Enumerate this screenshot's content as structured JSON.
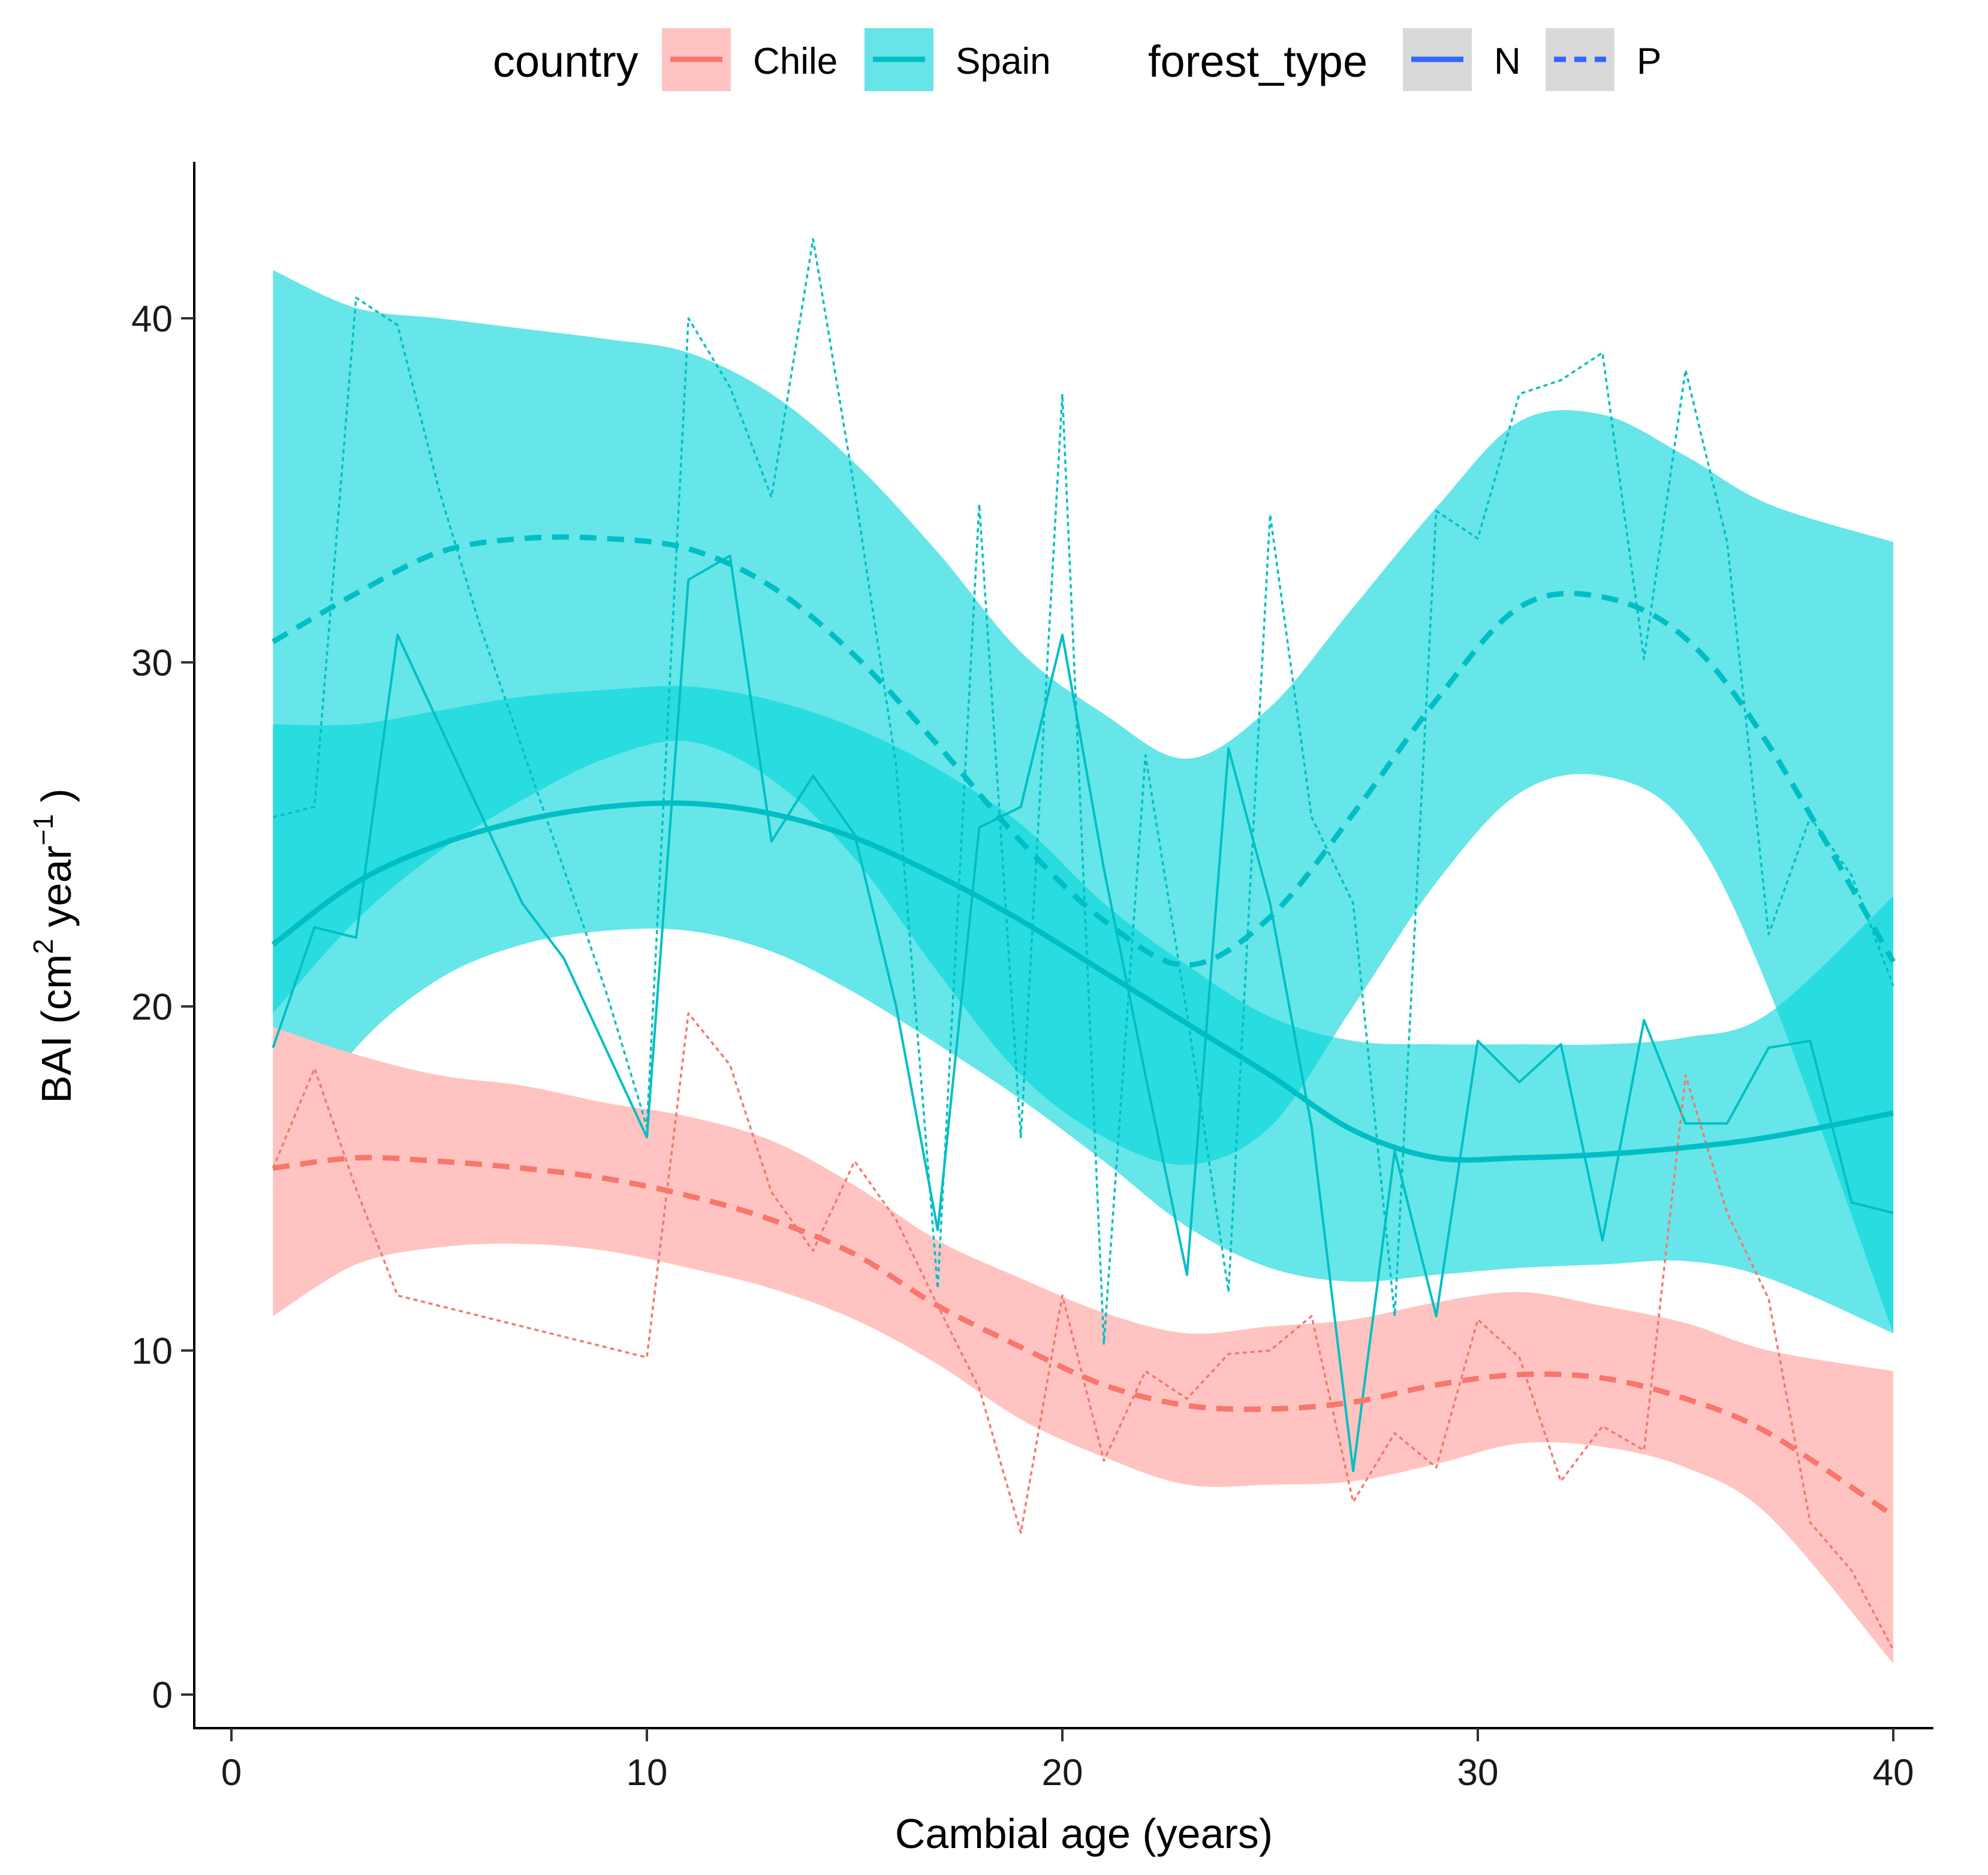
{
  "chart_data": {
    "type": "line",
    "title": "",
    "xlabel": "Cambial age (years)",
    "ylabel": "BAI (cm",
    "ylabel_sup1": "2",
    "ylabel_mid": " year",
    "ylabel_sup2": "−1",
    "ylabel_end": " )",
    "xlim": [
      -1,
      41
    ],
    "ylim": [
      -1,
      44.5
    ],
    "xticks": [
      0,
      10,
      20,
      30,
      40
    ],
    "yticks": [
      0,
      10,
      20,
      30,
      40
    ],
    "grid": false,
    "legend_position": "top",
    "legend": {
      "country_title": "country",
      "country_entries": [
        {
          "label": "Chile",
          "color": "#F8766D"
        },
        {
          "label": "Spain",
          "color": "#00BFC4"
        }
      ],
      "forest_title": "forest_type",
      "forest_entries": [
        {
          "label": "N",
          "style": "solid"
        },
        {
          "label": "P",
          "style": "dashed"
        }
      ],
      "forest_line_color": "#3366FF",
      "key_background": "#D9D9D9"
    },
    "colors": {
      "Chile": "#F8766D",
      "Spain": "#00BFC4",
      "Chile_fill": "#FFC4C1",
      "Spain_fill": "#00D5DB"
    },
    "x": [
      1,
      2,
      3,
      4,
      5,
      6,
      7,
      8,
      9,
      10,
      11,
      12,
      13,
      14,
      15,
      16,
      17,
      18,
      19,
      20,
      21,
      22,
      23,
      24,
      25,
      26,
      27,
      28,
      29,
      30,
      31,
      32,
      33,
      34,
      35,
      36,
      37,
      38,
      39,
      40
    ],
    "raw_series": [
      {
        "name": "Spain N (observed)",
        "country": "Spain",
        "forest_type": "N",
        "values": [
          18.8,
          22.3,
          22.0,
          30.8,
          28.2,
          25.6,
          23.0,
          21.4,
          18.8,
          16.2,
          32.4,
          33.1,
          24.8,
          26.7,
          25.0,
          20.0,
          13.5,
          25.2,
          25.8,
          30.8,
          24.0,
          18.0,
          12.2,
          27.5,
          23.0,
          16.5,
          6.5,
          15.8,
          11.0,
          19.0,
          17.8,
          18.9,
          13.2,
          19.6,
          16.6,
          16.6,
          18.8,
          19.0,
          14.3,
          14.0
        ]
      },
      {
        "name": "Spain P (observed)",
        "country": "Spain",
        "forest_type": "P",
        "values": [
          25.5,
          25.8,
          40.6,
          39.8,
          35.0,
          31.0,
          27.5,
          24.0,
          20.5,
          16.5,
          40.0,
          38.0,
          34.8,
          42.3,
          35.0,
          27.0,
          11.8,
          34.6,
          16.2,
          37.8,
          10.2,
          27.3,
          19.8,
          11.7,
          34.3,
          25.5,
          23.0,
          11.0,
          34.4,
          33.6,
          37.8,
          38.2,
          39.0,
          30.1,
          38.5,
          33.5,
          22.1,
          25.5,
          23.8,
          20.6
        ]
      },
      {
        "name": "Chile P (observed)",
        "country": "Chile",
        "forest_type": "P",
        "values": [
          15.3,
          18.2,
          14.7,
          11.6,
          11.3,
          11.0,
          10.7,
          10.4,
          10.1,
          9.8,
          19.8,
          18.3,
          14.6,
          12.9,
          15.5,
          13.8,
          11.3,
          8.9,
          4.7,
          11.6,
          6.8,
          9.4,
          8.6,
          9.9,
          10.0,
          11.0,
          5.6,
          7.6,
          6.6,
          10.9,
          9.8,
          6.2,
          7.8,
          7.1,
          18.0,
          14.0,
          11.5,
          5.0,
          3.6,
          1.3
        ]
      }
    ],
    "smooth_series": [
      {
        "name": "Spain P (smooth)",
        "country": "Spain",
        "forest_type": "P",
        "x": [
          1,
          3,
          5,
          7,
          9,
          11,
          13,
          15,
          17,
          19,
          21,
          23,
          25,
          27,
          29,
          31,
          33,
          35,
          37,
          40
        ],
        "values": [
          30.6,
          32.0,
          33.2,
          33.6,
          33.6,
          33.3,
          32.2,
          30.2,
          27.6,
          24.8,
          22.5,
          21.2,
          22.6,
          25.6,
          28.9,
          31.6,
          31.9,
          30.7,
          27.6,
          21.3
        ],
        "ci_low": [
          19.8,
          22.5,
          24.5,
          26.0,
          27.2,
          27.7,
          26.6,
          24.3,
          21.0,
          18.0,
          16.2,
          15.4,
          16.5,
          20.0,
          23.6,
          26.2,
          26.7,
          25.3,
          20.5,
          10.5
        ],
        "ci_high": [
          41.4,
          40.3,
          40.0,
          39.7,
          39.4,
          39.0,
          37.8,
          35.8,
          33.2,
          30.3,
          28.5,
          27.2,
          28.7,
          31.6,
          34.5,
          37.0,
          37.2,
          36.0,
          34.6,
          33.5
        ]
      },
      {
        "name": "Spain N (smooth)",
        "country": "Spain",
        "forest_type": "N",
        "x": [
          1,
          3,
          5,
          7,
          9,
          11,
          13,
          15,
          17,
          19,
          21,
          23,
          25,
          27,
          29,
          31,
          33,
          35,
          37,
          40
        ],
        "values": [
          21.8,
          23.6,
          24.7,
          25.4,
          25.8,
          25.9,
          25.6,
          24.9,
          23.8,
          22.5,
          21.0,
          19.5,
          18.0,
          16.4,
          15.6,
          15.6,
          15.7,
          15.9,
          16.2,
          16.9
        ],
        "ci_low": [
          15.4,
          18.8,
          20.8,
          21.8,
          22.2,
          22.2,
          21.6,
          20.4,
          18.9,
          17.3,
          15.5,
          13.6,
          12.4,
          12.0,
          12.2,
          12.4,
          12.5,
          12.6,
          12.1,
          10.5
        ],
        "ci_high": [
          28.2,
          28.2,
          28.6,
          29.0,
          29.2,
          29.3,
          28.9,
          28.1,
          26.9,
          25.3,
          23.0,
          21.2,
          19.7,
          19.0,
          18.9,
          18.9,
          18.9,
          19.1,
          19.8,
          23.2
        ]
      },
      {
        "name": "Chile P (smooth)",
        "country": "Chile",
        "forest_type": "P",
        "x": [
          1,
          3,
          5,
          7,
          9,
          11,
          13,
          15,
          17,
          19,
          21,
          23,
          25,
          27,
          29,
          31,
          33,
          35,
          37,
          40
        ],
        "values": [
          15.3,
          15.6,
          15.5,
          15.3,
          15.0,
          14.5,
          13.8,
          12.8,
          11.3,
          10.1,
          9.0,
          8.4,
          8.3,
          8.5,
          9.0,
          9.3,
          9.2,
          8.6,
          7.6,
          5.2
        ],
        "ci_low": [
          11.0,
          12.5,
          13.0,
          13.1,
          12.9,
          12.4,
          11.8,
          10.9,
          9.6,
          8.0,
          6.9,
          6.1,
          6.1,
          6.2,
          6.7,
          7.3,
          7.2,
          6.6,
          5.2,
          0.9
        ],
        "ci_high": [
          19.4,
          18.6,
          18.0,
          17.7,
          17.2,
          16.8,
          16.1,
          14.8,
          13.2,
          12.1,
          11.1,
          10.5,
          10.7,
          10.9,
          11.4,
          11.7,
          11.3,
          10.8,
          10.0,
          9.4
        ]
      }
    ]
  }
}
